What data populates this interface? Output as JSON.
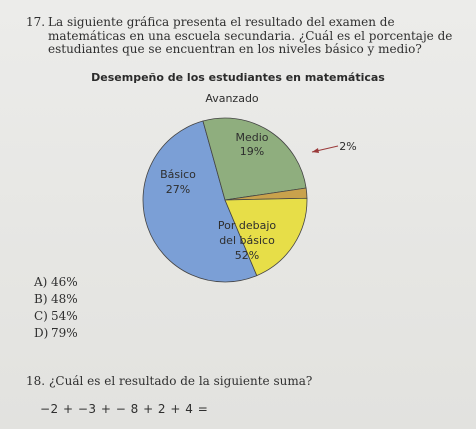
{
  "q17": {
    "number": "17.",
    "text": "La siguiente gráfica presenta el resultado del examen de matemáticas en una escuela secundaria. ¿Cuál es el porcentaje de estudiantes que se encuentran en los niveles básico y medio?"
  },
  "chart_data": {
    "type": "pie",
    "title": "Desempeño de los estudiantes en matemáticas",
    "slices": [
      {
        "label": "Por debajo del básico",
        "value": 52,
        "value_label": "52%",
        "color": "#7b9fd6"
      },
      {
        "label": "Básico",
        "value": 27,
        "value_label": "27%",
        "color": "#8fae7e"
      },
      {
        "label": "Avanzado",
        "value": 2,
        "value_label": "2%",
        "color": "#c9a24c"
      },
      {
        "label": "Medio",
        "value": 19,
        "value_label": "19%",
        "color": "#e7de48"
      }
    ],
    "label_lines": {
      "por_debajo_1": "Por debajo",
      "por_debajo_2": "del básico"
    }
  },
  "options": [
    {
      "letter": "A)",
      "value": "46%"
    },
    {
      "letter": "B)",
      "value": "48%"
    },
    {
      "letter": "C)",
      "value": "54%"
    },
    {
      "letter": "D)",
      "value": "79%"
    }
  ],
  "q18": {
    "number": "18.",
    "text": "¿Cuál es el resultado de la siguiente suma?",
    "expression": "−2 + −3 + − 8 + 2 + 4 ="
  }
}
